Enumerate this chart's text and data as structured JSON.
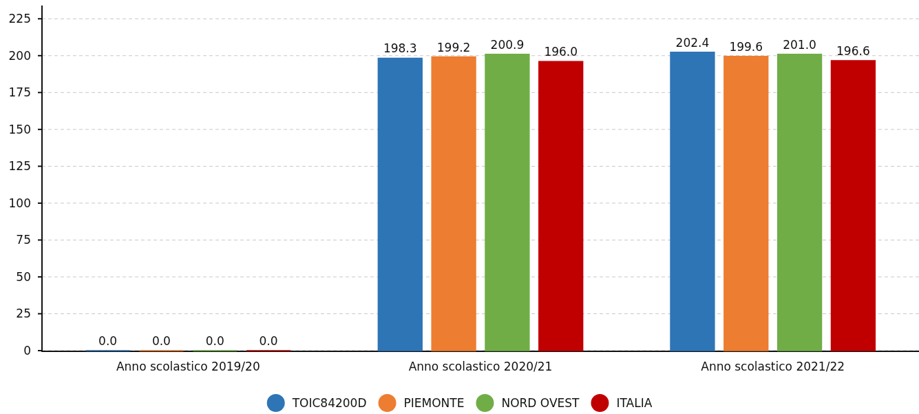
{
  "chart_data": {
    "type": "bar",
    "categories": [
      "Anno scolastico 2019/20",
      "Anno scolastico 2020/21",
      "Anno scolastico 2021/22"
    ],
    "series": [
      {
        "name": "TOIC84200D",
        "color": "#2e75b6",
        "values": [
          0,
          198.3,
          202.4
        ],
        "value_labels": [
          "0.0",
          "198.3",
          "202.4"
        ]
      },
      {
        "name": "PIEMONTE",
        "color": "#ed7d31",
        "values": [
          0,
          199.2,
          199.6
        ],
        "value_labels": [
          "0.0",
          "199.2",
          "199.6"
        ]
      },
      {
        "name": "NORD OVEST",
        "color": "#70ad47",
        "values": [
          0,
          200.9,
          201.0
        ],
        "value_labels": [
          "0.0",
          "200.9",
          "201.0"
        ]
      },
      {
        "name": "ITALIA",
        "color": "#c00000",
        "values": [
          0,
          196.0,
          196.6
        ],
        "value_labels": [
          "0.0",
          "196.0",
          "196.6"
        ]
      }
    ],
    "ylim": [
      0,
      234
    ],
    "yticks": [
      0,
      25,
      50,
      75,
      100,
      125,
      150,
      175,
      200,
      225
    ],
    "grid": "y",
    "legend": "bottom"
  }
}
